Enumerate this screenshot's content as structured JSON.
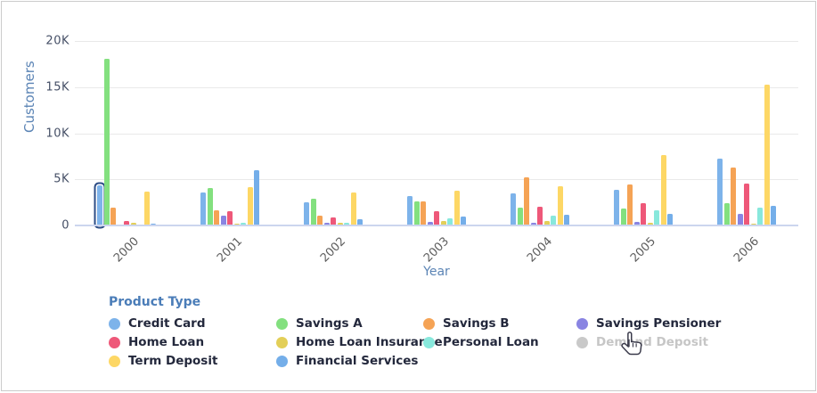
{
  "chart_data": {
    "type": "bar",
    "title": "",
    "xlabel": "Year",
    "ylabel": "Customers",
    "categories": [
      "2000",
      "2001",
      "2002",
      "2003",
      "2004",
      "2005",
      "2006"
    ],
    "y_ticks": [
      "20K",
      "15K",
      "10K",
      "5K",
      "0"
    ],
    "ylim": [
      0,
      20000
    ],
    "grid": "horizontal",
    "legend_position": "bottom",
    "legend_title": "Product Type",
    "series": [
      {
        "name": "Credit Card",
        "color": "#7db3ea",
        "enabled": true,
        "values": [
          4350,
          3600,
          2500,
          3150,
          3500,
          3900,
          7200
        ]
      },
      {
        "name": "Savings A",
        "color": "#83e07f",
        "enabled": true,
        "values": [
          18100,
          4050,
          2900,
          2650,
          1950,
          1850,
          2450
        ]
      },
      {
        "name": "Savings B",
        "color": "#f5a355",
        "enabled": true,
        "values": [
          1950,
          1650,
          1100,
          2650,
          5250,
          4450,
          6250
        ]
      },
      {
        "name": "Savings Pensioner",
        "color": "#8984e2",
        "enabled": true,
        "values": [
          0,
          1100,
          250,
          400,
          300,
          400,
          1300
        ]
      },
      {
        "name": "Home Loan",
        "color": "#ee5879",
        "enabled": true,
        "values": [
          450,
          1500,
          900,
          1500,
          2050,
          2450,
          4550
        ]
      },
      {
        "name": "Home Loan Insurance",
        "color": "#e3cf58",
        "enabled": true,
        "values": [
          250,
          200,
          250,
          500,
          500,
          300,
          150
        ]
      },
      {
        "name": "Personal Loan",
        "color": "#88e8dc",
        "enabled": true,
        "values": [
          0,
          300,
          300,
          750,
          1050,
          1650,
          1900
        ]
      },
      {
        "name": "Demand Deposit",
        "color": "#c9c9c9",
        "enabled": false,
        "values": []
      },
      {
        "name": "Term Deposit",
        "color": "#fdd765",
        "enabled": true,
        "values": [
          3700,
          4200,
          3550,
          3800,
          4300,
          7600,
          15300
        ]
      },
      {
        "name": "Financial Services",
        "color": "#74aee9",
        "enabled": true,
        "values": [
          150,
          6000,
          700,
          1000,
          1150,
          1300,
          2150
        ]
      }
    ],
    "selected_point": {
      "series": "Credit Card",
      "category": "2000"
    },
    "hovered_legend_item": "Demand Deposit"
  }
}
